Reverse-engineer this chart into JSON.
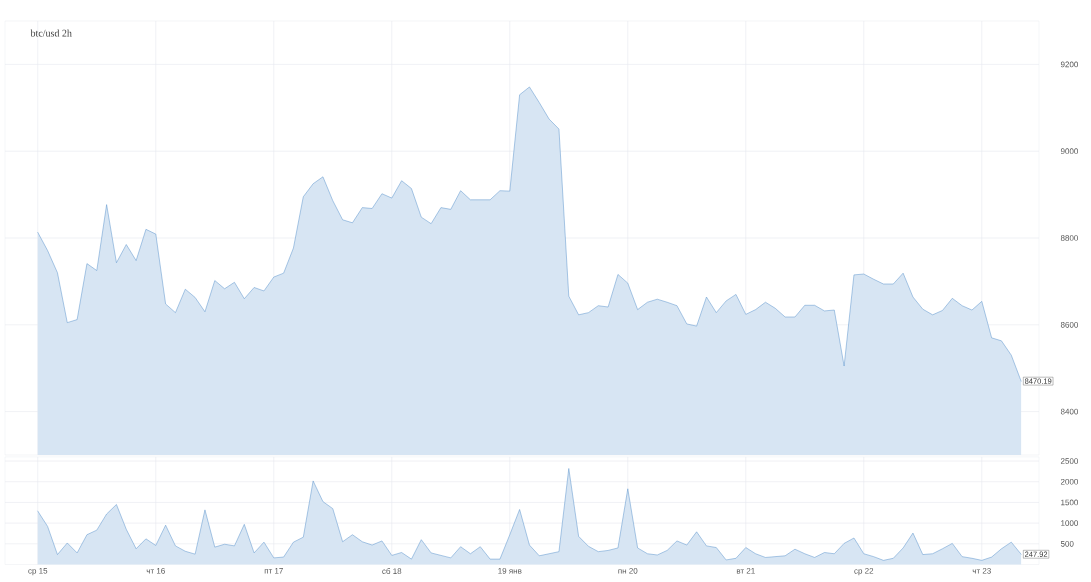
{
  "chart_data": [
    {
      "type": "area",
      "title": "btc/usd 2h",
      "color": "#4a89c8",
      "grid": true,
      "categories": [
        null,
        null,
        null,
        null,
        null,
        null,
        null,
        null,
        null,
        null,
        null,
        null,
        null,
        null,
        null,
        null,
        null,
        null,
        null,
        null,
        null,
        null,
        null,
        null,
        null,
        null,
        null,
        null,
        null,
        null,
        null,
        null,
        null,
        null,
        null,
        null,
        null,
        null,
        null,
        null,
        null,
        null,
        null,
        null,
        null,
        null,
        null,
        null,
        null,
        null,
        null,
        null,
        null,
        null,
        null,
        null,
        null,
        null,
        null,
        null,
        null,
        null,
        null,
        null,
        null,
        null,
        null,
        null,
        null,
        null,
        null,
        null,
        null,
        null,
        null,
        null,
        null,
        null,
        null,
        null,
        null,
        null,
        null,
        null,
        null,
        null,
        null,
        null,
        null,
        null,
        null,
        null,
        null,
        null,
        null,
        null,
        null,
        null,
        null,
        null,
        null
      ],
      "values": [
        8813,
        8771,
        8720,
        8605,
        8612,
        8741,
        8725,
        8877,
        8743,
        8785,
        8748,
        8820,
        8809,
        8648,
        8628,
        8682,
        8663,
        8630,
        8702,
        8683,
        8698,
        8660,
        8686,
        8678,
        8710,
        8719,
        8777,
        8895,
        8925,
        8941,
        8886,
        8842,
        8835,
        8870,
        8868,
        8902,
        8892,
        8932,
        8914,
        8848,
        8833,
        8870,
        8866,
        8909,
        8888,
        8888,
        8888,
        8909,
        8908,
        9130,
        9148,
        9112,
        9074,
        9051,
        8666,
        8623,
        8628,
        8644,
        8641,
        8716,
        8696,
        8635,
        8652,
        8659,
        8652,
        8644,
        8602,
        8597,
        8664,
        8628,
        8655,
        8670,
        8624,
        8635,
        8652,
        8638,
        8618,
        8618,
        8645,
        8645,
        8632,
        8634,
        8505,
        8715,
        8717,
        8705,
        8694,
        8694,
        8719,
        8664,
        8636,
        8623,
        8633,
        8661,
        8644,
        8634,
        8654,
        8570,
        8563,
        8530,
        8470.19
      ],
      "value_labels": [
        null,
        null,
        null,
        null,
        null,
        null,
        null,
        null,
        null,
        null,
        null,
        null,
        null,
        null,
        null,
        null,
        null,
        null,
        null,
        null,
        null,
        null,
        null,
        null,
        null,
        null,
        null,
        null,
        null,
        null,
        null,
        null,
        null,
        null,
        null,
        null,
        null,
        null,
        null,
        null,
        null,
        null,
        null,
        null,
        null,
        null,
        null,
        null,
        null,
        null,
        null,
        null,
        null,
        null,
        null,
        null,
        null,
        null,
        null,
        null,
        null,
        null,
        null,
        null,
        null,
        null,
        null,
        null,
        null,
        null,
        null,
        null,
        null,
        null,
        null,
        null,
        null,
        null,
        null,
        null,
        null,
        null,
        null,
        null,
        null,
        null,
        null,
        null,
        null,
        null,
        null,
        null,
        null,
        null,
        null,
        null,
        null,
        null,
        null,
        null,
        "8470.19"
      ],
      "ylim": [
        8300,
        9300
      ],
      "yticks": [
        8400,
        8600,
        8800,
        9000,
        9200
      ]
    },
    {
      "type": "area",
      "color": "#4a89c8",
      "grid": true,
      "categories": [
        "ср 15",
        null,
        null,
        null,
        null,
        null,
        null,
        null,
        null,
        null,
        null,
        null,
        "чт 16",
        null,
        null,
        null,
        null,
        null,
        null,
        null,
        null,
        null,
        null,
        null,
        "пт 17",
        null,
        null,
        null,
        null,
        null,
        null,
        null,
        null,
        null,
        null,
        null,
        "сб 18",
        null,
        null,
        null,
        null,
        null,
        null,
        null,
        null,
        null,
        null,
        null,
        "19 янв",
        null,
        null,
        null,
        null,
        null,
        null,
        null,
        null,
        null,
        null,
        null,
        "пн 20",
        null,
        null,
        null,
        null,
        null,
        null,
        null,
        null,
        null,
        null,
        null,
        "вт 21",
        null,
        null,
        null,
        null,
        null,
        null,
        null,
        null,
        null,
        null,
        null,
        "ср 22",
        null,
        null,
        null,
        null,
        null,
        null,
        null,
        null,
        null,
        null,
        null,
        "чт 23",
        null,
        null,
        null,
        null
      ],
      "values": [
        1290,
        920,
        240,
        520,
        280,
        720,
        830,
        1220,
        1450,
        850,
        380,
        620,
        460,
        950,
        450,
        320,
        250,
        1320,
        420,
        490,
        450,
        970,
        280,
        540,
        160,
        180,
        540,
        660,
        2020,
        1520,
        1350,
        550,
        720,
        550,
        470,
        570,
        220,
        290,
        130,
        600,
        280,
        220,
        160,
        430,
        260,
        430,
        130,
        130,
        720,
        1330,
        470,
        210,
        260,
        310,
        2320,
        680,
        440,
        310,
        340,
        400,
        1830,
        400,
        260,
        230,
        340,
        570,
        470,
        790,
        450,
        410,
        110,
        150,
        410,
        260,
        170,
        190,
        210,
        370,
        260,
        170,
        290,
        260,
        510,
        640,
        260,
        190,
        100,
        150,
        400,
        760,
        240,
        260,
        380,
        510,
        190,
        150,
        100,
        180,
        380,
        540,
        247.92
      ],
      "value_labels": [
        null,
        null,
        null,
        null,
        null,
        null,
        null,
        null,
        null,
        null,
        null,
        null,
        null,
        null,
        null,
        null,
        null,
        null,
        null,
        null,
        null,
        null,
        null,
        null,
        null,
        null,
        null,
        null,
        null,
        null,
        null,
        null,
        null,
        null,
        null,
        null,
        null,
        null,
        null,
        null,
        null,
        null,
        null,
        null,
        null,
        null,
        null,
        null,
        null,
        null,
        null,
        null,
        null,
        null,
        null,
        null,
        null,
        null,
        null,
        null,
        null,
        null,
        null,
        null,
        null,
        null,
        null,
        null,
        null,
        null,
        null,
        null,
        null,
        null,
        null,
        null,
        null,
        null,
        null,
        null,
        null,
        null,
        null,
        null,
        null,
        null,
        null,
        null,
        null,
        null,
        null,
        null,
        null,
        null,
        null,
        null,
        null,
        null,
        null,
        null,
        "247.92"
      ],
      "ylim": [
        0,
        2600
      ],
      "yticks": [
        500,
        1000,
        1500,
        2000,
        2500
      ]
    }
  ]
}
